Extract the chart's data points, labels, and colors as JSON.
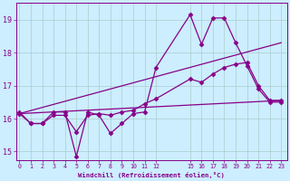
{
  "xlabel": "Windchill (Refroidissement éolien,°C)",
  "background_color": "#cceeff",
  "line_color": "#880088",
  "grid_color": "#aacccc",
  "x_ticks": [
    0,
    1,
    2,
    3,
    4,
    5,
    6,
    7,
    8,
    9,
    10,
    11,
    12,
    15,
    16,
    17,
    18,
    19,
    20,
    21,
    22,
    23
  ],
  "ylim": [
    14.75,
    19.5
  ],
  "xlim": [
    -0.3,
    23.5
  ],
  "yticks": [
    15,
    16,
    17,
    18,
    19
  ],
  "series": [
    {
      "x": [
        0,
        1,
        2,
        3,
        4,
        5,
        6,
        7,
        8,
        9,
        10,
        11,
        12,
        15,
        16,
        17,
        18,
        19,
        20,
        21,
        22,
        23
      ],
      "y": [
        16.2,
        15.85,
        15.85,
        16.2,
        16.2,
        14.85,
        16.2,
        16.1,
        15.55,
        15.85,
        16.15,
        16.2,
        17.55,
        19.15,
        18.25,
        19.05,
        19.05,
        18.3,
        17.6,
        16.9,
        16.5,
        16.5
      ],
      "marker": "D",
      "markersize": 2.5,
      "linewidth": 0.9
    },
    {
      "x": [
        0,
        1,
        2,
        3,
        4,
        5,
        6,
        7,
        8,
        9,
        10,
        11,
        12,
        15,
        16,
        17,
        18,
        19,
        20,
        21,
        22,
        23
      ],
      "y": [
        16.15,
        15.85,
        15.85,
        16.1,
        16.1,
        15.6,
        16.1,
        16.15,
        16.1,
        16.2,
        16.25,
        16.45,
        16.6,
        17.2,
        17.1,
        17.35,
        17.55,
        17.65,
        17.7,
        17.0,
        16.55,
        16.55
      ],
      "marker": "D",
      "markersize": 2.5,
      "linewidth": 0.9
    },
    {
      "x": [
        0,
        23
      ],
      "y": [
        16.15,
        16.55
      ],
      "marker": null,
      "markersize": 0,
      "linewidth": 0.9
    },
    {
      "x": [
        0,
        23
      ],
      "y": [
        16.15,
        18.3
      ],
      "marker": null,
      "markersize": 0,
      "linewidth": 0.9
    }
  ]
}
